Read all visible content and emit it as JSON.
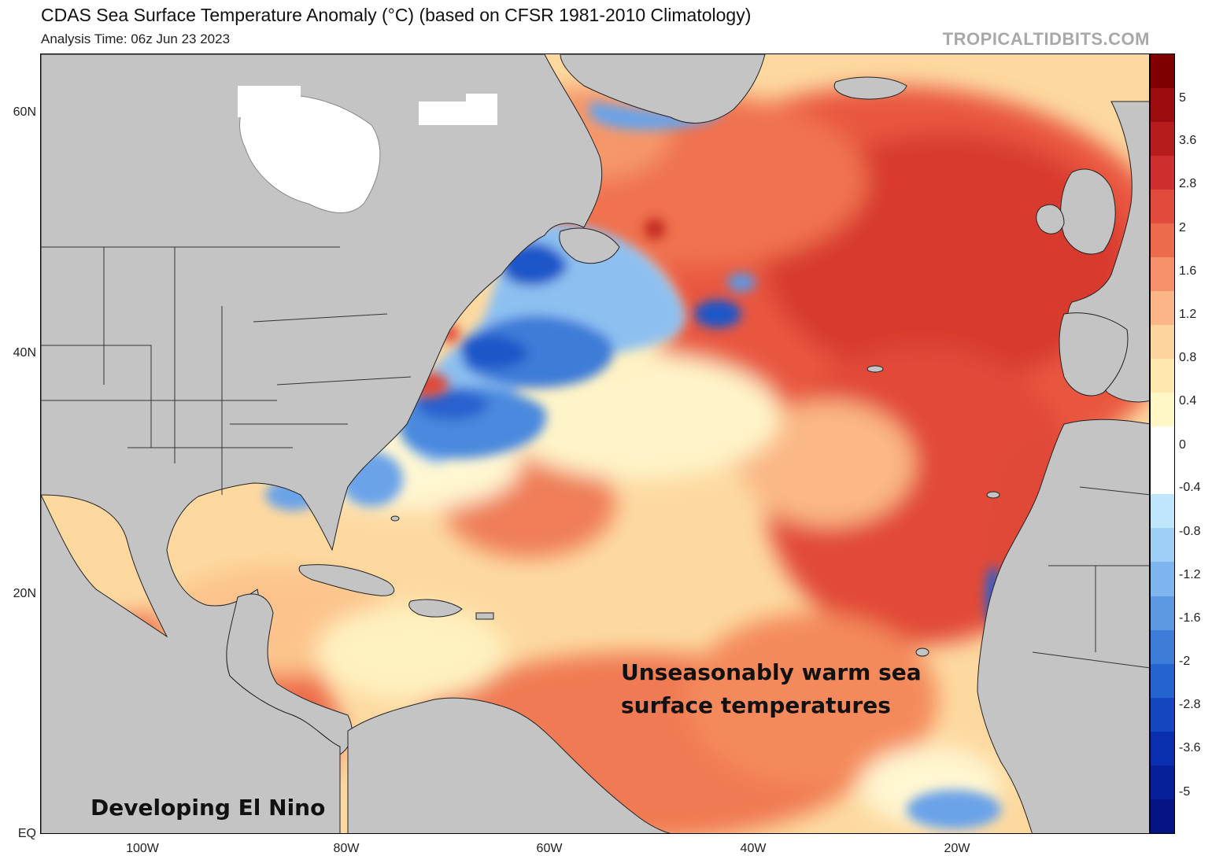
{
  "header": {
    "title": "CDAS Sea Surface Temperature Anomaly (°C) (based on CFSR 1981-2010 Climatology)",
    "subtitle": "Analysis Time: 06z Jun 23 2023",
    "brand": "TROPICALTIDBITS.COM"
  },
  "axes": {
    "lat_labels": [
      "60N",
      "40N",
      "20N",
      "EQ"
    ],
    "lon_labels": [
      "100W",
      "80W",
      "60W",
      "40W",
      "20W"
    ]
  },
  "colorbar": {
    "labels": [
      "5",
      "3.6",
      "2.8",
      "2",
      "1.6",
      "1.2",
      "0.8",
      "0.4",
      "0",
      "-0.4",
      "-0.8",
      "-1.2",
      "-1.6",
      "-2",
      "-2.8",
      "-3.6",
      "-5"
    ],
    "colors": [
      "#7f0000",
      "#9c0d0d",
      "#b71c1c",
      "#cf2e2e",
      "#e24a3b",
      "#ee6a4d",
      "#f6906a",
      "#fbb586",
      "#fdd49e",
      "#fee8b0",
      "#fff7c6",
      "#ffffff",
      "#ffffff",
      "#bfe6fb",
      "#9ed0f5",
      "#7fb5ee",
      "#5d98e3",
      "#3d7cd8",
      "#2563cf",
      "#1346bf",
      "#0a2fae",
      "#06209a",
      "#041485"
    ]
  },
  "annotations": {
    "warm_line1": "Unseasonably warm sea",
    "warm_line2": "surface temperatures",
    "el_nino": "Developing El Nino"
  },
  "colors": {
    "land": "#c4c4c4",
    "ice": "#ffffff",
    "deep_red": "#d8392d",
    "red": "#e7573f",
    "orange": "#f48a5c",
    "light_orange": "#fbb883",
    "yellow": "#fde7a6",
    "white": "#ffffff",
    "light_blue": "#a9d4f7",
    "blue": "#4f8fe0",
    "dark_blue": "#1f56c9"
  }
}
